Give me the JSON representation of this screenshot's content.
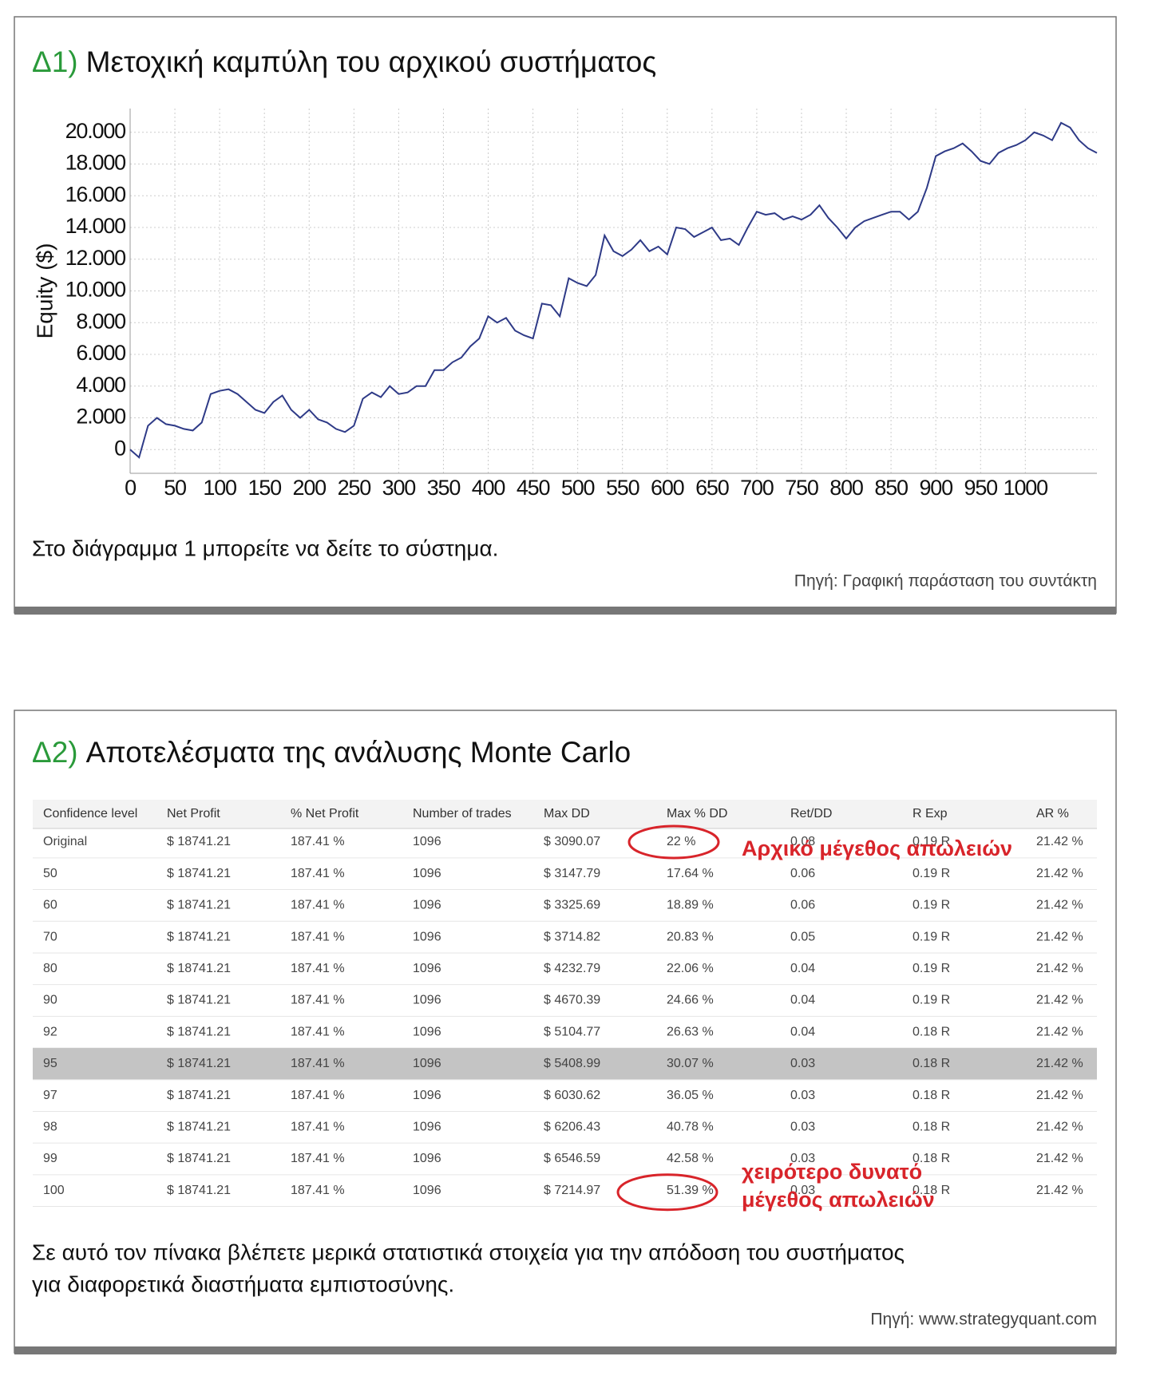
{
  "panel1": {
    "label": "Δ1)",
    "title": "Μετοχική καμπύλη του αρχικού συστήματος",
    "caption": "Στο διάγραμμα 1 μπορείτε να δείτε το σύστημα.",
    "source": "Πηγή: Γραφική παράσταση του συντάκτη"
  },
  "chart_data": {
    "type": "line",
    "ylabel": "Equity ($)",
    "color": "#2e3a87",
    "grid": true,
    "x": [
      0,
      10,
      20,
      30,
      40,
      50,
      60,
      70,
      80,
      90,
      100,
      110,
      120,
      130,
      140,
      150,
      160,
      170,
      180,
      190,
      200,
      210,
      220,
      230,
      240,
      250,
      260,
      270,
      280,
      290,
      300,
      310,
      320,
      330,
      340,
      350,
      360,
      370,
      380,
      390,
      400,
      410,
      420,
      430,
      440,
      450,
      460,
      470,
      480,
      490,
      500,
      510,
      520,
      530,
      540,
      550,
      560,
      570,
      580,
      590,
      600,
      610,
      620,
      630,
      640,
      650,
      660,
      670,
      680,
      690,
      700,
      710,
      720,
      730,
      740,
      750,
      760,
      770,
      780,
      790,
      800,
      810,
      820,
      830,
      840,
      850,
      860,
      870,
      880,
      890,
      900,
      910,
      920,
      930,
      940,
      950,
      960,
      970,
      980,
      990,
      1000,
      1010,
      1020,
      1030,
      1040,
      1050,
      1060,
      1070,
      1080
    ],
    "values": [
      0,
      -500,
      1500,
      2000,
      1600,
      1500,
      1300,
      1200,
      1700,
      3500,
      3700,
      3800,
      3500,
      3000,
      2500,
      2300,
      3000,
      3400,
      2500,
      2000,
      2500,
      1900,
      1700,
      1300,
      1100,
      1500,
      3200,
      3600,
      3300,
      4000,
      3500,
      3600,
      4000,
      4000,
      5000,
      5000,
      5500,
      5800,
      6500,
      7000,
      8400,
      8000,
      8300,
      7500,
      7200,
      7000,
      9200,
      9100,
      8400,
      10800,
      10500,
      10300,
      11000,
      13500,
      12500,
      12200,
      12600,
      13200,
      12500,
      12800,
      12300,
      14000,
      13900,
      13400,
      13700,
      14000,
      13200,
      13300,
      12900,
      14000,
      15000,
      14800,
      14900,
      14500,
      14700,
      14500,
      14800,
      15400,
      14600,
      14000,
      13300,
      14000,
      14400,
      14600,
      14800,
      15000,
      15000,
      14500,
      15000,
      16500,
      18500,
      18800,
      19000,
      19300,
      18800,
      18200,
      18000,
      18700,
      19000,
      19200,
      19500,
      20000,
      19800,
      19500,
      20600,
      20300,
      19500,
      19000,
      18700
    ],
    "xlim": [
      0,
      1080
    ],
    "ylim": [
      -1500,
      21500
    ],
    "xticks": [
      0,
      50,
      100,
      150,
      200,
      250,
      300,
      350,
      400,
      450,
      500,
      550,
      600,
      650,
      700,
      750,
      800,
      850,
      900,
      950,
      1000
    ],
    "yticks": [
      0,
      {
        "value": 2000,
        "label": "2.000"
      },
      {
        "value": 4000,
        "label": "4.000"
      },
      {
        "value": 6000,
        "label": "6.000"
      },
      {
        "value": 8000,
        "label": "8.000"
      },
      {
        "value": 10000,
        "label": "10.000"
      },
      {
        "value": 12000,
        "label": "12.000"
      },
      {
        "value": 14000,
        "label": "14.000"
      },
      {
        "value": 16000,
        "label": "16.000"
      },
      {
        "value": 18000,
        "label": "18.000"
      },
      {
        "value": 20000,
        "label": "20.000"
      }
    ]
  },
  "panel2": {
    "label": "Δ2)",
    "title": "Αποτελέσματα της ανάλυσης Monte Carlo",
    "table": {
      "header": [
        "Confidence level",
        "Net Profit",
        "% Net Profit",
        "Number of trades",
        "Max DD",
        "Max % DD",
        "Ret/DD",
        "R Exp",
        "AR %"
      ],
      "highlight_row": 7,
      "rows": [
        [
          "Original",
          "$ 18741.21",
          "187.41 %",
          "1096",
          "$ 3090.07",
          "22 %",
          "0.08",
          "0.19 R",
          "21.42 %"
        ],
        [
          "50",
          "$ 18741.21",
          "187.41 %",
          "1096",
          "$ 3147.79",
          "17.64 %",
          "0.06",
          "0.19 R",
          "21.42 %"
        ],
        [
          "60",
          "$ 18741.21",
          "187.41 %",
          "1096",
          "$ 3325.69",
          "18.89 %",
          "0.06",
          "0.19 R",
          "21.42 %"
        ],
        [
          "70",
          "$ 18741.21",
          "187.41 %",
          "1096",
          "$ 3714.82",
          "20.83 %",
          "0.05",
          "0.19 R",
          "21.42 %"
        ],
        [
          "80",
          "$ 18741.21",
          "187.41 %",
          "1096",
          "$ 4232.79",
          "22.06 %",
          "0.04",
          "0.19 R",
          "21.42 %"
        ],
        [
          "90",
          "$ 18741.21",
          "187.41 %",
          "1096",
          "$ 4670.39",
          "24.66 %",
          "0.04",
          "0.19 R",
          "21.42 %"
        ],
        [
          "92",
          "$ 18741.21",
          "187.41 %",
          "1096",
          "$ 5104.77",
          "26.63 %",
          "0.04",
          "0.18 R",
          "21.42 %"
        ],
        [
          "95",
          "$ 18741.21",
          "187.41 %",
          "1096",
          "$ 5408.99",
          "30.07 %",
          "0.03",
          "0.18 R",
          "21.42 %"
        ],
        [
          "97",
          "$ 18741.21",
          "187.41 %",
          "1096",
          "$ 6030.62",
          "36.05 %",
          "0.03",
          "0.18 R",
          "21.42 %"
        ],
        [
          "98",
          "$ 18741.21",
          "187.41 %",
          "1096",
          "$ 6206.43",
          "40.78 %",
          "0.03",
          "0.18 R",
          "21.42 %"
        ],
        [
          "99",
          "$ 18741.21",
          "187.41 %",
          "1096",
          "$ 6546.59",
          "42.58 %",
          "0.03",
          "0.18 R",
          "21.42 %"
        ],
        [
          "100",
          "$ 18741.21",
          "187.41 %",
          "1096",
          "$ 7214.97",
          "51.39 %",
          "0.03",
          "0.18 R",
          "21.42 %"
        ]
      ]
    },
    "annotations": [
      {
        "lines": [
          "Αρχικό μέγεθος απωλειών"
        ]
      },
      {
        "lines": [
          "χειρότερο δυνατό",
          "μέγεθος απωλειών"
        ]
      }
    ],
    "caption": [
      "Σε αυτό τον πίνακα βλέπετε μερικά στατιστικά στοιχεία για την απόδοση του συστήματος",
      "για διαφορετικά διαστήματα εμπιστοσύνης."
    ],
    "source": "Πηγή: www.strategyquant.com"
  }
}
